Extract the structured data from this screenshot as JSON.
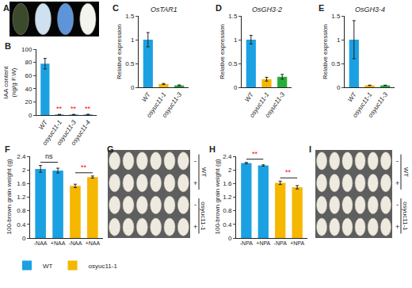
{
  "chart_data": [
    {
      "panel": "B",
      "type": "bar",
      "ylabel": [
        "IAA content",
        "(ng/g F.W)"
      ],
      "categories": [
        "WT",
        "osyuc11-1",
        "osyuc11-3",
        "osyuc11-4"
      ],
      "values": [
        78,
        0.8,
        0.8,
        0.9
      ],
      "errors": [
        8,
        0.2,
        0.2,
        0.2
      ],
      "color": "#1ba1e2",
      "ylim": [
        0,
        100
      ],
      "yticks": [
        0,
        20,
        40,
        60,
        80,
        100
      ],
      "annotations": [
        {
          "text": "**",
          "color": "red",
          "positions": [
            1
          ]
        },
        {
          "text": "**",
          "color": "red",
          "positions": [
            2
          ]
        },
        {
          "text": "**",
          "color": "red",
          "positions": [
            3
          ]
        }
      ]
    },
    {
      "panel": "C",
      "type": "bar",
      "title": "OsTAR1",
      "ylabel": [
        "Relative expression"
      ],
      "categories": [
        "WT",
        "osyuc11-1",
        "osyuc11-3"
      ],
      "values": [
        1,
        0.07,
        0.04
      ],
      "errors": [
        0.15,
        0.01,
        0.01
      ],
      "colors": [
        "#1ba1e2",
        "#f5b700",
        "#27ae3a"
      ],
      "ylim": [
        0,
        1.5
      ],
      "yticks": [
        0,
        0.5,
        1,
        1.5
      ]
    },
    {
      "panel": "D",
      "type": "bar",
      "title": "OsGH3-2",
      "ylabel": [
        "Relative expression"
      ],
      "categories": [
        "WT",
        "osyuc11-1",
        "osyuc11-3"
      ],
      "values": [
        1,
        0.17,
        0.22
      ],
      "errors": [
        0.09,
        0.04,
        0.05
      ],
      "colors": [
        "#1ba1e2",
        "#f5b700",
        "#27ae3a"
      ],
      "ylim": [
        0,
        1.5
      ],
      "yticks": [
        0,
        0.5,
        1,
        1.5
      ]
    },
    {
      "panel": "E",
      "type": "bar",
      "title": "OsGH3-4",
      "ylabel": [
        "Relative expression"
      ],
      "categories": [
        "WT",
        "osyuc11-1",
        "osyuc11-3"
      ],
      "values": [
        1,
        0.04,
        0.04
      ],
      "errors": [
        0.4,
        0.005,
        0.005
      ],
      "colors": [
        "#1ba1e2",
        "#f5b700",
        "#27ae3a"
      ],
      "ylim": [
        0,
        1.5
      ],
      "yticks": [
        0,
        0.5,
        1,
        1.5
      ]
    },
    {
      "panel": "F",
      "type": "bar",
      "ylabel": [
        "100-brown grain weight (g)"
      ],
      "categories": [
        "-NAA",
        "+NAA",
        "-NAA",
        "+NAA"
      ],
      "series": [
        {
          "name": "WT",
          "color": "#1ba1e2",
          "values": [
            2.03,
            1.98,
            null,
            null
          ],
          "errors": [
            0.1,
            0.07,
            null,
            null
          ]
        },
        {
          "name": "osyuc11-1",
          "color": "#f5b700",
          "values": [
            null,
            null,
            1.53,
            1.79
          ],
          "errors": [
            null,
            null,
            0.05,
            0.03
          ]
        }
      ],
      "ylim": [
        0,
        2.4
      ],
      "yticks": [
        0,
        0.4,
        0.8,
        1.2,
        1.6,
        2,
        2.4
      ],
      "legend": "bottom",
      "annotations": [
        {
          "text": "ns",
          "positions": [
            0,
            1
          ]
        },
        {
          "text": "**",
          "color": "red",
          "positions": [
            2,
            3
          ]
        }
      ]
    },
    {
      "panel": "H",
      "type": "bar",
      "ylabel": [
        "100-brown grain weight (g)"
      ],
      "categories": [
        "-NPA",
        "+NPA",
        "-NPA",
        "+NPA"
      ],
      "series": [
        {
          "name": "WT",
          "color": "#1ba1e2",
          "values": [
            2.2,
            2.13,
            null,
            null
          ],
          "errors": [
            0.02,
            0.02,
            null,
            null
          ]
        },
        {
          "name": "osyuc11-1",
          "color": "#f5b700",
          "values": [
            null,
            null,
            1.62,
            1.49
          ],
          "errors": [
            null,
            null,
            0.05,
            0.05
          ]
        }
      ],
      "ylim": [
        0,
        2.4
      ],
      "yticks": [
        0,
        0.4,
        0.8,
        1.2,
        1.6,
        2,
        2.4
      ],
      "annotations": [
        {
          "text": "**",
          "color": "red",
          "positions": [
            0,
            1
          ]
        },
        {
          "text": "**",
          "color": "red",
          "positions": [
            2,
            3
          ]
        }
      ]
    }
  ],
  "photos": [
    {
      "panel": "A"
    },
    {
      "panel": "G",
      "groups": [
        {
          "name": "WT",
          "rows": [
            "-",
            "+"
          ]
        },
        {
          "name": "osyuc11-1",
          "rows": [
            "-",
            "+"
          ]
        }
      ]
    },
    {
      "panel": "I",
      "groups": [
        {
          "name": "WT",
          "rows": [
            "-",
            "+"
          ]
        },
        {
          "name": "osyuc11-1",
          "rows": [
            "-",
            "+"
          ]
        }
      ]
    }
  ]
}
